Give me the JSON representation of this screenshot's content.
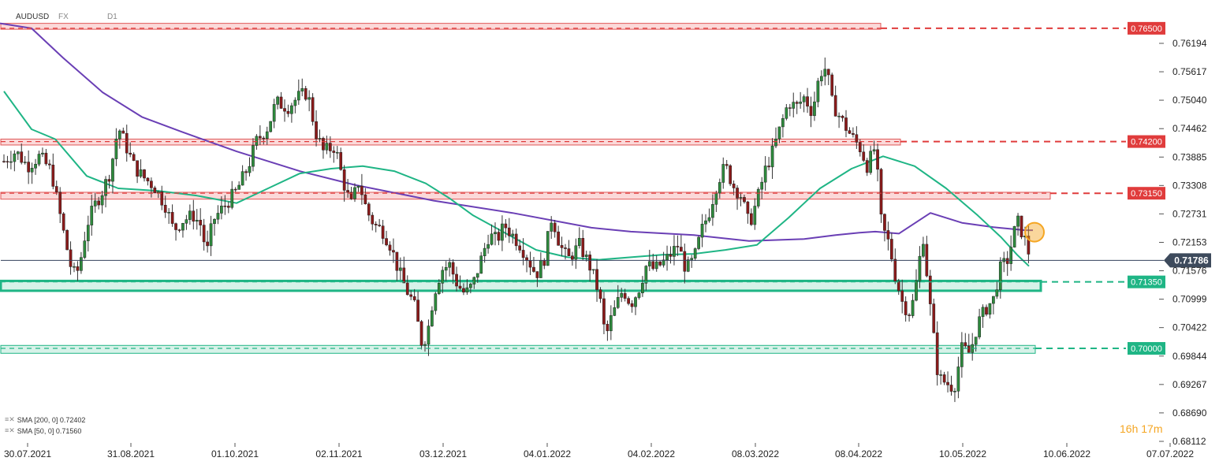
{
  "header": {
    "symbol": "AUDUSD",
    "market": "FX",
    "interval": "D1"
  },
  "countdown": {
    "hours": "16",
    "h_unit": "h",
    "minutes": "17",
    "m_unit": "m"
  },
  "indicators": [
    {
      "label": "SMA [200, 0] 0.72402",
      "color": "#6a3fb5"
    },
    {
      "label": "SMA [50, 0] 0.71560",
      "color": "#1fb585"
    }
  ],
  "chart_data": {
    "type": "candlestick",
    "symbol": "AUDUSD",
    "ylim": [
      0.6811,
      0.7667
    ],
    "y_ticks": [
      "0.76194",
      "0.75617",
      "0.75040",
      "0.74462",
      "0.73885",
      "0.73308",
      "0.72731",
      "0.72153",
      "0.71576",
      "0.70999",
      "0.70422",
      "0.69844",
      "0.69267",
      "0.68690",
      "0.68112"
    ],
    "x_ticks": [
      "30.07.2021",
      "31.08.2021",
      "01.10.2021",
      "02.11.2021",
      "03.12.2021",
      "04.01.2022",
      "04.02.2022",
      "08.03.2022",
      "08.04.2022",
      "10.05.2022",
      "10.06.2022",
      "07.07.2022"
    ],
    "levels": [
      {
        "label": "0.76500",
        "value": 0.765,
        "color": "#e03c3c"
      },
      {
        "label": "0.74200",
        "value": 0.742,
        "color": "#e03c3c"
      },
      {
        "label": "0.73150",
        "value": 0.7315,
        "color": "#e03c3c"
      },
      {
        "label": "0.71350",
        "value": 0.7135,
        "color": "#1fb585"
      },
      {
        "label": "0.70000",
        "value": 0.7,
        "color": "#1fb585"
      }
    ],
    "current_price": {
      "label": "0.71786",
      "value": 0.71786
    },
    "zones": [
      {
        "color": "red",
        "low": 0.7648,
        "high": 0.766,
        "from": "30.07.2021",
        "to": "15.04.2022"
      },
      {
        "color": "red",
        "low": 0.7413,
        "high": 0.7425,
        "from": "30.07.2021",
        "to": "18.04.2022"
      },
      {
        "color": "red",
        "low": 0.7303,
        "high": 0.7317,
        "from": "30.07.2021",
        "to": "10.06.2022"
      },
      {
        "color": "green",
        "low": 0.7117,
        "high": 0.7137,
        "from": "30.07.2021",
        "to": "07.06.2022"
      },
      {
        "color": "green",
        "low": 0.699,
        "high": 0.7006,
        "from": "30.07.2021",
        "to": "04.06.2022"
      }
    ],
    "sma200": [
      [
        0,
        0.766
      ],
      [
        40,
        0.765
      ],
      [
        80,
        0.759
      ],
      [
        130,
        0.752
      ],
      [
        180,
        0.747
      ],
      [
        230,
        0.744
      ],
      [
        300,
        0.74
      ],
      [
        380,
        0.736
      ],
      [
        450,
        0.7332
      ],
      [
        550,
        0.73
      ],
      [
        650,
        0.7275
      ],
      [
        750,
        0.7245
      ],
      [
        800,
        0.7237
      ],
      [
        880,
        0.723
      ],
      [
        950,
        0.7218
      ],
      [
        1020,
        0.7222
      ],
      [
        1060,
        0.723
      ],
      [
        1090,
        0.7235
      ],
      [
        1110,
        0.7237
      ],
      [
        1140,
        0.7233
      ],
      [
        1180,
        0.7275
      ],
      [
        1220,
        0.7255
      ],
      [
        1260,
        0.7246
      ],
      [
        1300,
        0.724
      ],
      [
        1310,
        0.724
      ]
    ],
    "sma50": [
      [
        5,
        0.7522
      ],
      [
        40,
        0.7445
      ],
      [
        70,
        0.7425
      ],
      [
        110,
        0.735
      ],
      [
        150,
        0.7325
      ],
      [
        200,
        0.732
      ],
      [
        250,
        0.731
      ],
      [
        300,
        0.7295
      ],
      [
        340,
        0.7325
      ],
      [
        380,
        0.7355
      ],
      [
        420,
        0.7365
      ],
      [
        460,
        0.737
      ],
      [
        500,
        0.736
      ],
      [
        540,
        0.7335
      ],
      [
        570,
        0.7305
      ],
      [
        600,
        0.727
      ],
      [
        640,
        0.7235
      ],
      [
        680,
        0.72
      ],
      [
        720,
        0.7185
      ],
      [
        760,
        0.718
      ],
      [
        800,
        0.7185
      ],
      [
        840,
        0.719
      ],
      [
        880,
        0.7192
      ],
      [
        920,
        0.72
      ],
      [
        960,
        0.721
      ],
      [
        1000,
        0.7265
      ],
      [
        1040,
        0.7325
      ],
      [
        1080,
        0.7365
      ],
      [
        1120,
        0.739
      ],
      [
        1160,
        0.737
      ],
      [
        1200,
        0.7325
      ],
      [
        1240,
        0.727
      ],
      [
        1270,
        0.7225
      ],
      [
        1290,
        0.719
      ],
      [
        1305,
        0.7167
      ]
    ],
    "candles_path": [
      [
        5,
        0.738
      ],
      [
        20,
        0.74
      ],
      [
        35,
        0.737
      ],
      [
        50,
        0.739
      ],
      [
        65,
        0.736
      ],
      [
        80,
        0.724
      ],
      [
        92,
        0.715
      ],
      [
        100,
        0.716
      ],
      [
        110,
        0.725
      ],
      [
        120,
        0.729
      ],
      [
        130,
        0.732
      ],
      [
        140,
        0.736
      ],
      [
        150,
        0.745
      ],
      [
        160,
        0.741
      ],
      [
        170,
        0.737
      ],
      [
        180,
        0.735
      ],
      [
        195,
        0.733
      ],
      [
        210,
        0.729
      ],
      [
        220,
        0.724
      ],
      [
        232,
        0.726
      ],
      [
        245,
        0.727
      ],
      [
        255,
        0.725
      ],
      [
        262,
        0.719
      ],
      [
        270,
        0.726
      ],
      [
        280,
        0.728
      ],
      [
        290,
        0.73
      ],
      [
        300,
        0.732
      ],
      [
        315,
        0.737
      ],
      [
        325,
        0.742
      ],
      [
        340,
        0.745
      ],
      [
        350,
        0.75
      ],
      [
        365,
        0.749
      ],
      [
        378,
        0.751
      ],
      [
        390,
        0.752
      ],
      [
        400,
        0.744
      ],
      [
        410,
        0.74
      ],
      [
        425,
        0.741
      ],
      [
        435,
        0.734
      ],
      [
        445,
        0.729
      ],
      [
        455,
        0.734
      ],
      [
        465,
        0.728
      ],
      [
        475,
        0.725
      ],
      [
        485,
        0.724
      ],
      [
        495,
        0.721
      ],
      [
        505,
        0.716
      ],
      [
        515,
        0.712
      ],
      [
        525,
        0.709
      ],
      [
        535,
        0.701
      ],
      [
        542,
        0.703
      ],
      [
        550,
        0.711
      ],
      [
        560,
        0.716
      ],
      [
        570,
        0.717
      ],
      [
        580,
        0.713
      ],
      [
        590,
        0.711
      ],
      [
        600,
        0.713
      ],
      [
        610,
        0.718
      ],
      [
        620,
        0.723
      ],
      [
        630,
        0.722
      ],
      [
        640,
        0.725
      ],
      [
        650,
        0.723
      ],
      [
        660,
        0.721
      ],
      [
        670,
        0.718
      ],
      [
        680,
        0.715
      ],
      [
        690,
        0.718
      ],
      [
        700,
        0.727
      ],
      [
        710,
        0.721
      ],
      [
        720,
        0.718
      ],
      [
        735,
        0.721
      ],
      [
        750,
        0.716
      ],
      [
        760,
        0.711
      ],
      [
        768,
        0.702
      ],
      [
        775,
        0.706
      ],
      [
        790,
        0.712
      ],
      [
        800,
        0.709
      ],
      [
        810,
        0.712
      ],
      [
        820,
        0.717
      ],
      [
        830,
        0.716
      ],
      [
        845,
        0.718
      ],
      [
        860,
        0.721
      ],
      [
        870,
        0.716
      ],
      [
        880,
        0.718
      ],
      [
        890,
        0.724
      ],
      [
        900,
        0.728
      ],
      [
        910,
        0.734
      ],
      [
        920,
        0.737
      ],
      [
        930,
        0.733
      ],
      [
        940,
        0.731
      ],
      [
        950,
        0.725
      ],
      [
        960,
        0.73
      ],
      [
        970,
        0.736
      ],
      [
        980,
        0.74
      ],
      [
        990,
        0.745
      ],
      [
        1000,
        0.75
      ],
      [
        1010,
        0.749
      ],
      [
        1020,
        0.751
      ],
      [
        1030,
        0.748
      ],
      [
        1040,
        0.756
      ],
      [
        1048,
        0.757
      ],
      [
        1055,
        0.75
      ],
      [
        1065,
        0.747
      ],
      [
        1080,
        0.743
      ],
      [
        1090,
        0.741
      ],
      [
        1100,
        0.737
      ],
      [
        1110,
        0.741
      ],
      [
        1118,
        0.725
      ],
      [
        1128,
        0.721
      ],
      [
        1135,
        0.715
      ],
      [
        1145,
        0.709
      ],
      [
        1155,
        0.707
      ],
      [
        1165,
        0.716
      ],
      [
        1170,
        0.724
      ],
      [
        1180,
        0.708
      ],
      [
        1190,
        0.694
      ],
      [
        1200,
        0.693
      ],
      [
        1210,
        0.692
      ],
      [
        1220,
        0.7
      ],
      [
        1230,
        0.699
      ],
      [
        1240,
        0.705
      ],
      [
        1250,
        0.708
      ],
      [
        1260,
        0.71
      ],
      [
        1268,
        0.716
      ],
      [
        1278,
        0.718
      ],
      [
        1290,
        0.726
      ],
      [
        1300,
        0.722
      ],
      [
        1308,
        0.7176
      ]
    ],
    "marker": {
      "value": 0.7236,
      "style": "orange-circle"
    }
  }
}
